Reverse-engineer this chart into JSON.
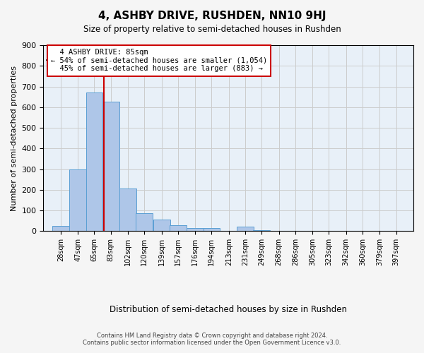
{
  "title": "4, ASHBY DRIVE, RUSHDEN, NN10 9HJ",
  "subtitle": "Size of property relative to semi-detached houses in Rushden",
  "xlabel": "Distribution of semi-detached houses by size in Rushden",
  "ylabel": "Number of semi-detached properties",
  "bin_labels": [
    "28sqm",
    "47sqm",
    "65sqm",
    "83sqm",
    "102sqm",
    "120sqm",
    "139sqm",
    "157sqm",
    "176sqm",
    "194sqm",
    "213sqm",
    "231sqm",
    "249sqm",
    "268sqm",
    "286sqm",
    "305sqm",
    "323sqm",
    "342sqm",
    "360sqm",
    "379sqm",
    "397sqm"
  ],
  "bin_edges": [
    28,
    47,
    65,
    83,
    102,
    120,
    139,
    157,
    176,
    194,
    213,
    231,
    249,
    268,
    286,
    305,
    323,
    342,
    360,
    379,
    397
  ],
  "bar_heights": [
    25,
    300,
    670,
    625,
    205,
    85,
    55,
    30,
    15,
    15,
    0,
    20,
    5,
    0,
    0,
    0,
    0,
    0,
    0,
    0
  ],
  "bar_color": "#aec6e8",
  "bar_edge_color": "#5a9fd4",
  "property_line_x": 85,
  "property_size": 85,
  "property_label": "4 ASHBY DRIVE: 85sqm",
  "annotation_line1": "← 54% of semi-detached houses are smaller (1,054)",
  "annotation_line2": "45% of semi-detached houses are larger (883) →",
  "annotation_box_color": "#ffffff",
  "annotation_box_edge": "#cc0000",
  "red_line_color": "#cc0000",
  "ylim": [
    0,
    900
  ],
  "yticks": [
    0,
    100,
    200,
    300,
    400,
    500,
    600,
    700,
    800,
    900
  ],
  "grid_color": "#cccccc",
  "background_color": "#e8f0f8",
  "footer_line1": "Contains HM Land Registry data © Crown copyright and database right 2024.",
  "footer_line2": "Contains public sector information licensed under the Open Government Licence v3.0."
}
